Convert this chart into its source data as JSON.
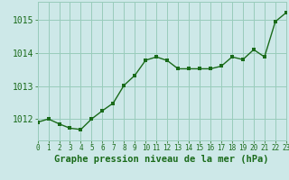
{
  "x": [
    0,
    1,
    2,
    3,
    4,
    5,
    6,
    7,
    8,
    9,
    10,
    11,
    12,
    13,
    14,
    15,
    16,
    17,
    18,
    19,
    20,
    21,
    22,
    23
  ],
  "y": [
    1011.9,
    1012.0,
    1011.85,
    1011.72,
    1011.68,
    1012.0,
    1012.25,
    1012.48,
    1013.02,
    1013.32,
    1013.78,
    1013.88,
    1013.77,
    1013.52,
    1013.52,
    1013.52,
    1013.52,
    1013.6,
    1013.88,
    1013.8,
    1014.1,
    1013.88,
    1014.95,
    1015.22
  ],
  "line_color": "#1a6b1a",
  "marker_color": "#1a6b1a",
  "bg_color": "#cde8e8",
  "grid_color": "#99ccbb",
  "tick_label_color": "#1a6b1a",
  "xlabel": "Graphe pression niveau de la mer (hPa)",
  "xlabel_color": "#1a6b1a",
  "yticks": [
    1012,
    1013,
    1014,
    1015
  ],
  "ylim": [
    1011.35,
    1015.55
  ],
  "xlim": [
    0,
    23
  ],
  "xtick_labels": [
    "0",
    "1",
    "2",
    "3",
    "4",
    "5",
    "6",
    "7",
    "8",
    "9",
    "10",
    "11",
    "12",
    "13",
    "14",
    "15",
    "16",
    "17",
    "18",
    "19",
    "20",
    "21",
    "22",
    "23"
  ],
  "fontsize_xlabel": 7.5,
  "fontsize_yticks": 7,
  "fontsize_xticks": 5.5
}
